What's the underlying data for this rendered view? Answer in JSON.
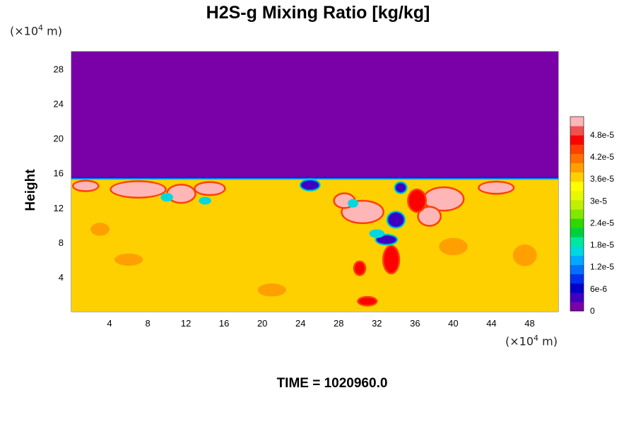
{
  "chart_data": {
    "type": "heatmap",
    "title": "H2S-g Mixing Ratio [kg/kg]",
    "ylabel": "Height",
    "xlabel": "",
    "x_unit": {
      "prefix": "(×10",
      "exp": "4",
      "suffix": " m)"
    },
    "y_unit": {
      "prefix": "(×10",
      "exp": "4",
      "suffix": " m)"
    },
    "xlim": [
      0,
      51
    ],
    "ylim": [
      0,
      30
    ],
    "x_ticks": [
      4,
      8,
      12,
      16,
      20,
      24,
      28,
      32,
      36,
      40,
      44,
      48
    ],
    "y_ticks": [
      4,
      8,
      12,
      16,
      20,
      24,
      28
    ],
    "colorbar": {
      "range": [
        0,
        5.3e-05
      ],
      "labels": [
        {
          "text": "0",
          "value": 0
        },
        {
          "text": "6e-6",
          "value": 6e-06
        },
        {
          "text": "1.2e-5",
          "value": 1.2e-05
        },
        {
          "text": "1.8e-5",
          "value": 1.8e-05
        },
        {
          "text": "2.4e-5",
          "value": 2.4e-05
        },
        {
          "text": "3e-5",
          "value": 3e-05
        },
        {
          "text": "3.6e-5",
          "value": 3.6e-05
        },
        {
          "text": "4.2e-5",
          "value": 4.2e-05
        },
        {
          "text": "4.8e-5",
          "value": 4.8e-05
        }
      ],
      "colors": [
        "#7a00a8",
        "#3f00bf",
        "#0000c8",
        "#0030f0",
        "#0070ff",
        "#00aaff",
        "#00d8e0",
        "#00e8a0",
        "#00d040",
        "#30d800",
        "#80e800",
        "#c0f000",
        "#e8f800",
        "#ffff00",
        "#ffd000",
        "#ffa000",
        "#ff7000",
        "#ff4000",
        "#ff0000",
        "#f05050",
        "#ffb6b6"
      ]
    },
    "field": {
      "background_value": 3.65e-05,
      "upper_value": 0,
      "interface_height": 15.5,
      "features": [
        {
          "kind": "high",
          "x": 7.0,
          "y": 14.1,
          "w": 5.6,
          "h": 1.7
        },
        {
          "kind": "high",
          "x": 11.5,
          "y": 13.6,
          "w": 2.8,
          "h": 1.9
        },
        {
          "kind": "high",
          "x": 14.5,
          "y": 14.2,
          "w": 3.0,
          "h": 1.3
        },
        {
          "kind": "high",
          "x": 1.5,
          "y": 14.5,
          "w": 2.5,
          "h": 1.0
        },
        {
          "kind": "high",
          "x": 30.5,
          "y": 11.5,
          "w": 4.2,
          "h": 2.4
        },
        {
          "kind": "high",
          "x": 28.6,
          "y": 12.8,
          "w": 2.0,
          "h": 1.5
        },
        {
          "kind": "high",
          "x": 39.0,
          "y": 13.0,
          "w": 4.0,
          "h": 2.5
        },
        {
          "kind": "high",
          "x": 37.5,
          "y": 11.0,
          "w": 2.2,
          "h": 2.0
        },
        {
          "kind": "high",
          "x": 44.5,
          "y": 14.3,
          "w": 3.5,
          "h": 1.2
        },
        {
          "kind": "red",
          "x": 36.2,
          "y": 12.8,
          "w": 1.7,
          "h": 2.4
        },
        {
          "kind": "red",
          "x": 33.5,
          "y": 6.0,
          "w": 1.5,
          "h": 3.0
        },
        {
          "kind": "red",
          "x": 31.0,
          "y": 1.2,
          "w": 1.8,
          "h": 0.8
        },
        {
          "kind": "red",
          "x": 30.2,
          "y": 5.0,
          "w": 1.0,
          "h": 1.4
        },
        {
          "kind": "low",
          "x": 25.0,
          "y": 14.6,
          "w": 1.8,
          "h": 1.0
        },
        {
          "kind": "low",
          "x": 34.0,
          "y": 10.6,
          "w": 1.6,
          "h": 1.6
        },
        {
          "kind": "low",
          "x": 33.0,
          "y": 8.3,
          "w": 2.0,
          "h": 0.9
        },
        {
          "kind": "low",
          "x": 34.5,
          "y": 14.3,
          "w": 1.0,
          "h": 1.0
        },
        {
          "kind": "mid",
          "x": 10.0,
          "y": 13.2,
          "w": 1.3,
          "h": 1.0
        },
        {
          "kind": "mid",
          "x": 14.0,
          "y": 12.8,
          "w": 1.3,
          "h": 0.9
        },
        {
          "kind": "mid",
          "x": 29.5,
          "y": 12.5,
          "w": 1.1,
          "h": 1.0
        },
        {
          "kind": "mid",
          "x": 32.0,
          "y": 9.0,
          "w": 1.6,
          "h": 1.0
        },
        {
          "kind": "warm",
          "x": 6.0,
          "y": 6.0,
          "w": 3.0,
          "h": 1.4
        },
        {
          "kind": "warm",
          "x": 21.0,
          "y": 2.5,
          "w": 3.0,
          "h": 1.5
        },
        {
          "kind": "warm",
          "x": 40.0,
          "y": 7.5,
          "w": 3.0,
          "h": 2.0
        },
        {
          "kind": "warm",
          "x": 47.5,
          "y": 6.5,
          "w": 2.5,
          "h": 2.5
        },
        {
          "kind": "warm",
          "x": 3.0,
          "y": 9.5,
          "w": 2.0,
          "h": 1.5
        }
      ]
    }
  },
  "time_label": "TIME = 1020960.0"
}
